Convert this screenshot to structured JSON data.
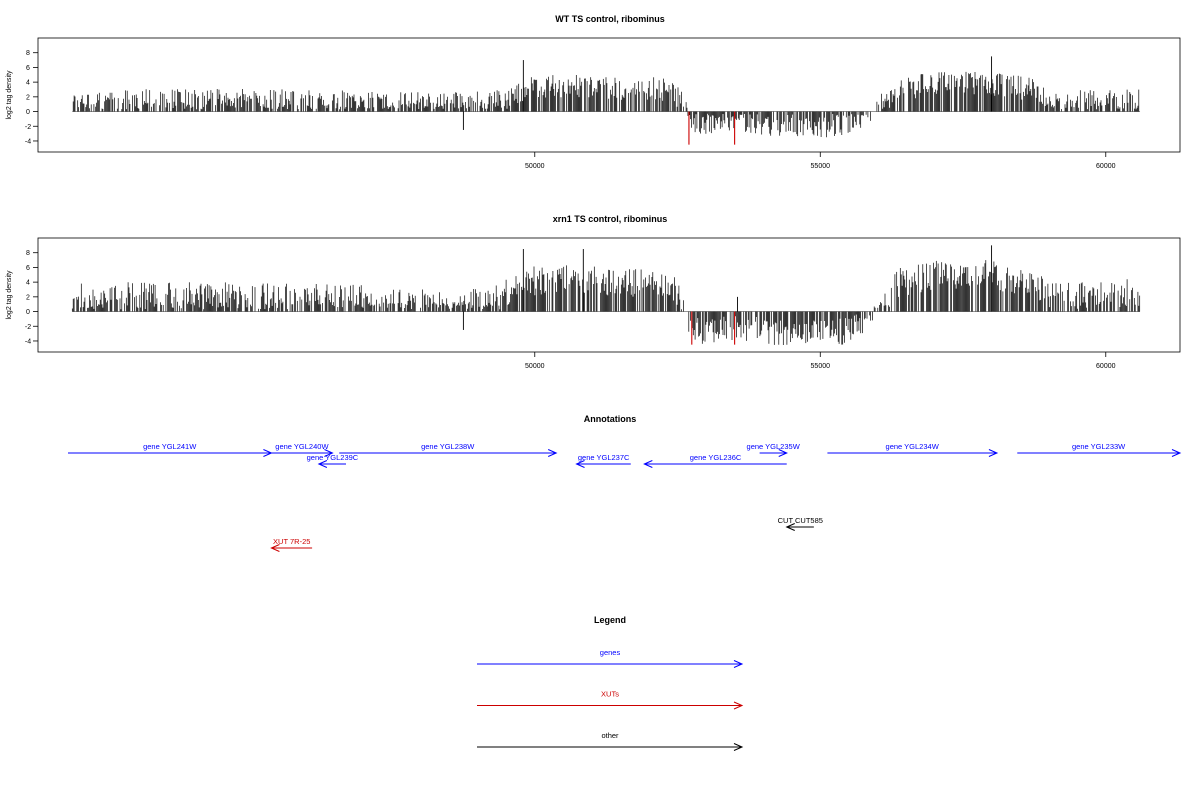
{
  "chart_data": [
    {
      "type": "bar",
      "title": "WT TS control, ribominus",
      "xlabel": "",
      "ylabel": "log2 tag density",
      "xlim": [
        41300,
        61300
      ],
      "ylim": [
        -5.5,
        10
      ],
      "yticks": [
        -4,
        -2,
        0,
        2,
        4,
        6,
        8
      ],
      "xticks": [
        50000,
        55000,
        60000
      ],
      "highlight_color": "#cc0000",
      "profile": {
        "x": [
          41900,
          45000,
          47500,
          48500,
          49300,
          49800,
          50500,
          51500,
          52200,
          52500,
          52800,
          53600,
          54200,
          55000,
          55600,
          56000,
          56400,
          57000,
          58000,
          58700,
          59000,
          60000,
          60600
        ],
        "y": [
          1.5,
          1.5,
          1.2,
          1.0,
          1.2,
          3.0,
          3.5,
          3.0,
          3.2,
          2.0,
          -1.5,
          -1.2,
          -1.8,
          -2.0,
          -1.5,
          0.5,
          3.0,
          3.8,
          3.8,
          3.0,
          1.2,
          1.5,
          1.5
        ],
        "spread": 1.6
      },
      "highlight_bars": [
        {
          "x": 52700,
          "y": -4.5
        },
        {
          "x": 53500,
          "y": -4.5
        }
      ],
      "peak_bars": [
        {
          "x": 49800,
          "y": 7
        },
        {
          "x": 58000,
          "y": 7.5
        },
        {
          "x": 48750,
          "y": -2.5
        }
      ]
    },
    {
      "type": "bar",
      "title": "xrn1 TS control, ribominus",
      "xlabel": "",
      "ylabel": "log2 tag density",
      "xlim": [
        41300,
        61300
      ],
      "ylim": [
        -5.5,
        10
      ],
      "yticks": [
        -4,
        -2,
        0,
        2,
        4,
        6,
        8
      ],
      "xticks": [
        50000,
        55000,
        60000
      ],
      "highlight_color": "#cc0000",
      "profile": {
        "x": [
          41900,
          45000,
          47500,
          48500,
          49300,
          49800,
          50500,
          51500,
          52200,
          52500,
          52800,
          53600,
          54200,
          55000,
          55600,
          56000,
          56400,
          57000,
          58000,
          58700,
          59000,
          60000,
          60600
        ],
        "y": [
          2.0,
          2.0,
          1.5,
          1.0,
          1.5,
          4.0,
          4.5,
          4.0,
          4.0,
          2.5,
          -2.5,
          -2.0,
          -3.0,
          -3.0,
          -2.5,
          0.5,
          4.0,
          5.0,
          5.0,
          4.0,
          2.0,
          2.5,
          2.5
        ],
        "spread": 2.0
      },
      "highlight_bars": [
        {
          "x": 52750,
          "y": -4.5
        },
        {
          "x": 53500,
          "y": -4.5
        }
      ],
      "peak_bars": [
        {
          "x": 49800,
          "y": 8.5
        },
        {
          "x": 50850,
          "y": 8.5
        },
        {
          "x": 58000,
          "y": 9
        },
        {
          "x": 48750,
          "y": -2.5
        },
        {
          "x": 53550,
          "y": 2
        }
      ]
    }
  ],
  "annotations": {
    "title": "Annotations",
    "xlim": [
      41300,
      61300
    ],
    "colors": {
      "genes": "#0000ff",
      "XUTs": "#cc0000",
      "other": "#000000"
    },
    "features": [
      {
        "label": "gene YGL241W",
        "start": 41700,
        "end": 44700,
        "strand": "+",
        "row": 0,
        "kind": "genes"
      },
      {
        "label": "gene YGL240W",
        "start": 44700,
        "end": 45600,
        "strand": "+",
        "row": 0,
        "kind": "genes"
      },
      {
        "label": "gene YGL239C",
        "start": 45400,
        "end": 45800,
        "strand": "-",
        "row": 1,
        "kind": "genes"
      },
      {
        "label": "gene YGL238W",
        "start": 45700,
        "end": 48900,
        "strand": "+",
        "row": 0,
        "kind": "genes"
      },
      {
        "label": "gene YGL237C",
        "start": 49200,
        "end": 50000,
        "strand": "-",
        "row": 1,
        "kind": "genes"
      },
      {
        "label": "gene YGL236C",
        "start": 50200,
        "end": 52300,
        "strand": "-",
        "row": 1,
        "kind": "genes"
      },
      {
        "label": "gene YGL235W",
        "start": 51900,
        "end": 52300,
        "strand": "+",
        "row": 0,
        "kind": "genes"
      },
      {
        "label": "gene YGL234W",
        "start": 52900,
        "end": 55400,
        "strand": "+",
        "row": 0,
        "kind": "genes"
      },
      {
        "label": "gene YGL233W",
        "start": 55700,
        "end": 58100,
        "strand": "+",
        "row": 0,
        "kind": "genes"
      },
      {
        "label": "CUT CUT585",
        "start": 52300,
        "end": 52700,
        "strand": "-",
        "row": 2,
        "kind": "other"
      },
      {
        "label": "XUT 7R-25",
        "start": 44700,
        "end": 45300,
        "strand": "-",
        "row": 3,
        "kind": "XUTs"
      }
    ]
  },
  "legend": {
    "title": "Legend",
    "items": [
      {
        "label": "genes",
        "color": "#0000ff"
      },
      {
        "label": "XUTs",
        "color": "#cc0000"
      },
      {
        "label": "other",
        "color": "#000000"
      }
    ]
  }
}
